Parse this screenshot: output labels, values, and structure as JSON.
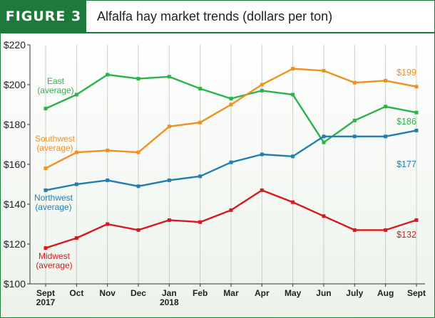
{
  "header": {
    "figure_label": "FIGURE 3",
    "title": "Alfalfa hay market trends (dollars per ton)"
  },
  "chart_data": {
    "type": "line",
    "title": "Alfalfa hay market trends (dollars per ton)",
    "categories": [
      "Sept\n2017",
      "Oct",
      "Nov",
      "Dec",
      "Jan\n2018",
      "Feb",
      "Mar",
      "Apr",
      "May",
      "Jun",
      "July",
      "Aug",
      "Sept"
    ],
    "ylim": [
      100,
      220
    ],
    "yticks": [
      "$100",
      "$120",
      "$140",
      "$160",
      "$180",
      "$200",
      "$220"
    ],
    "ytick_values": [
      100,
      120,
      140,
      160,
      180,
      200,
      220
    ],
    "grid": "vertical",
    "series": [
      {
        "name": "East\n(average)",
        "color": "#2bb34a",
        "end_label": "$186",
        "values": [
          188,
          195,
          205,
          203,
          204,
          198,
          193,
          197,
          195,
          171,
          182,
          189,
          186
        ]
      },
      {
        "name": "Southwest\n(average)",
        "color": "#f0901f",
        "end_label": "$199",
        "values": [
          158,
          166,
          167,
          166,
          179,
          181,
          190,
          200,
          208,
          207,
          201,
          202,
          199
        ]
      },
      {
        "name": "Northwest\n(average)",
        "color": "#1f7fb5",
        "end_label": "$177",
        "values": [
          147,
          150,
          152,
          149,
          152,
          154,
          161,
          165,
          164,
          174,
          174,
          174,
          177
        ]
      },
      {
        "name": "Midwest\n(average)",
        "color": "#d7191f",
        "end_label": "$132",
        "values": [
          118,
          123,
          130,
          127,
          132,
          131,
          137,
          147,
          141,
          134,
          127,
          127,
          132
        ]
      }
    ]
  }
}
